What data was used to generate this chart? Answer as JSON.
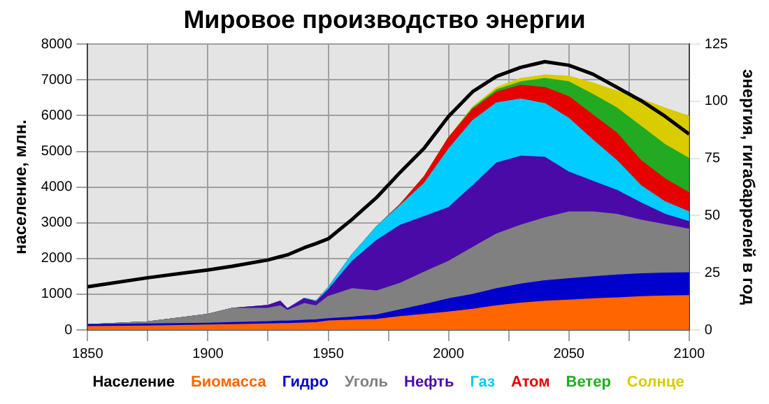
{
  "chart_data": {
    "type": "area",
    "title": "Мировое производство энергии",
    "ylabel": "население, млн.",
    "y2label": "энергия, гигабаррелей в год",
    "x": [
      1850,
      1875,
      1900,
      1910,
      1925,
      1930,
      1933,
      1940,
      1945,
      1950,
      1960,
      1970,
      1980,
      1990,
      2000,
      2010,
      2020,
      2030,
      2040,
      2050,
      2060,
      2070,
      2080,
      2090,
      2100
    ],
    "xlim": [
      1850,
      2100
    ],
    "xticks": [
      1850,
      {
        "value": 1875,
        "label": null
      },
      1900,
      {
        "value": 1925,
        "label": null
      },
      1950,
      {
        "value": 1975,
        "label": null
      },
      2000,
      {
        "value": 2025,
        "label": null
      },
      2050,
      {
        "value": 2075,
        "label": null
      },
      2100
    ],
    "ylim": [
      0,
      8000
    ],
    "yticks": [
      0,
      1000,
      2000,
      3000,
      4000,
      5000,
      6000,
      7000,
      8000
    ],
    "y2lim": [
      0,
      125
    ],
    "y2ticks": [
      0,
      25,
      50,
      75,
      100,
      125
    ],
    "stacked": true,
    "grid": true,
    "legend": "bottom",
    "series": [
      {
        "name": "Население",
        "type": "line",
        "color": "#000000",
        "values": [
          1210,
          1460,
          1680,
          1780,
          1960,
          2050,
          2100,
          2300,
          2420,
          2550,
          3100,
          3700,
          4420,
          5100,
          5980,
          6670,
          7100,
          7350,
          7510,
          7410,
          7160,
          6790,
          6420,
          5980,
          5480
        ]
      },
      {
        "name": "Биомасса",
        "axis": "y2",
        "color": "#ff6600",
        "values": [
          1.4,
          1.7,
          2.1,
          2.3,
          2.6,
          2.7,
          2.7,
          3.0,
          3.2,
          3.9,
          4.3,
          4.6,
          5.8,
          6.8,
          7.8,
          9,
          10.5,
          11.7,
          12.5,
          13,
          13.6,
          14,
          14.5,
          14.8,
          15
        ]
      },
      {
        "name": "Гидро",
        "axis": "y2",
        "color": "#0000cc",
        "values": [
          0.9,
          0.9,
          0.8,
          0.9,
          1.0,
          1.1,
          1.1,
          1.2,
          1.2,
          1.0,
          1.3,
          1.9,
          3.0,
          4.3,
          5.8,
          6.5,
          7.5,
          8.3,
          9.0,
          9.4,
          9.6,
          10,
          10,
          10,
          10
        ]
      },
      {
        "name": "Уголь",
        "axis": "y2",
        "color": "#808080",
        "values": [
          0,
          0.9,
          3.9,
          6.2,
          5.9,
          6.7,
          4.7,
          7.3,
          6.1,
          9.7,
          12.4,
          10.5,
          11.6,
          14.2,
          16.4,
          20.5,
          24,
          25.8,
          27.5,
          29.2,
          28.4,
          26.5,
          23.5,
          21.2,
          19
        ]
      },
      {
        "name": "Нефть",
        "axis": "y2",
        "color": "#4a0aa8",
        "values": [
          0,
          0,
          0,
          0,
          1.2,
          2.0,
          0.7,
          2.1,
          1.8,
          2.9,
          12,
          22,
          25.4,
          24.3,
          23.5,
          27,
          31,
          30.2,
          26.5,
          17.4,
          13.4,
          10.5,
          7.5,
          4.5,
          3.3
        ]
      },
      {
        "name": "Газ",
        "axis": "y2",
        "color": "#00ccff",
        "values": [
          0,
          0,
          0,
          0,
          0,
          0,
          0,
          0.2,
          0.3,
          1.0,
          3,
          6,
          8.7,
          14.6,
          25.5,
          28.5,
          26.3,
          25,
          23.5,
          23.5,
          18,
          13,
          7.5,
          5.5,
          4.3
        ]
      },
      {
        "name": "Атом",
        "axis": "y2",
        "color": "#e60000",
        "values": [
          0,
          0,
          0,
          0,
          0,
          0,
          0,
          0,
          0,
          0,
          0,
          0,
          0.5,
          3,
          5,
          4.9,
          4.7,
          6,
          7,
          9.5,
          11,
          12,
          11,
          10,
          8.4
        ]
      },
      {
        "name": "Ветер",
        "axis": "y2",
        "color": "#22aa22",
        "values": [
          0,
          0,
          0,
          0,
          0,
          0,
          0,
          0,
          0,
          0,
          0,
          0,
          0,
          0,
          0,
          0.6,
          1,
          1.5,
          4,
          6.5,
          9,
          11,
          15,
          15,
          15
        ]
      },
      {
        "name": "Солнце",
        "axis": "y2",
        "color": "#d9cc00",
        "values": [
          0,
          0,
          0,
          0,
          0,
          0,
          0,
          0,
          0,
          0,
          0,
          0,
          0,
          0,
          0,
          0.5,
          1,
          1.5,
          1.5,
          2.5,
          5,
          7.5,
          12,
          16,
          18.5
        ]
      }
    ]
  }
}
